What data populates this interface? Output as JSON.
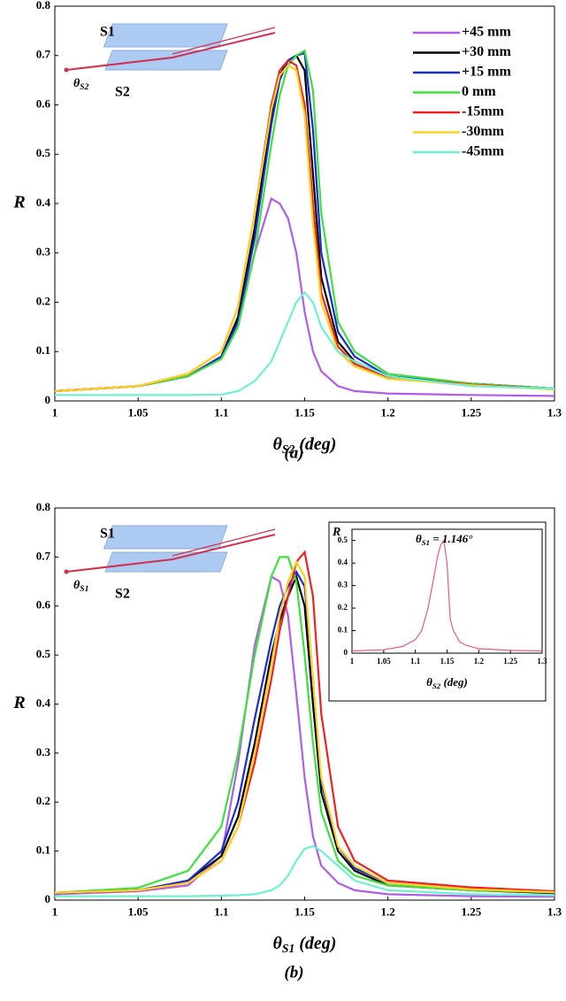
{
  "chart_data": [
    {
      "type": "line",
      "caption": "(a)",
      "y_label": "R",
      "x_label": {
        "main": "θ",
        "sub": "S2",
        "rest": " (deg)"
      },
      "diagram": {
        "upper": "S1",
        "lower": "S2",
        "angle": {
          "main": "θ",
          "sub": "S2"
        }
      },
      "xlim": [
        1,
        1.3
      ],
      "xticks": [
        1,
        1.05,
        1.1,
        1.15,
        1.2,
        1.25,
        1.3
      ],
      "ylim": [
        0,
        0.8
      ],
      "yticks": [
        0,
        0.1,
        0.2,
        0.3,
        0.4,
        0.5,
        0.6,
        0.7,
        0.8
      ],
      "legend": "top-right",
      "x": [
        1.0,
        1.05,
        1.08,
        1.1,
        1.11,
        1.12,
        1.13,
        1.135,
        1.14,
        1.145,
        1.15,
        1.155,
        1.16,
        1.17,
        1.18,
        1.2,
        1.25,
        1.3
      ],
      "series": [
        {
          "name": "+45 mm",
          "color": "#b25de8",
          "values": [
            0.02,
            0.03,
            0.05,
            0.09,
            0.16,
            0.3,
            0.41,
            0.4,
            0.37,
            0.3,
            0.18,
            0.1,
            0.06,
            0.03,
            0.02,
            0.015,
            0.012,
            0.01
          ]
        },
        {
          "name": "+30 mm",
          "color": "#000000",
          "values": [
            0.02,
            0.03,
            0.05,
            0.09,
            0.17,
            0.35,
            0.58,
            0.66,
            0.69,
            0.7,
            0.67,
            0.46,
            0.25,
            0.12,
            0.08,
            0.05,
            0.035,
            0.025
          ]
        },
        {
          "name": "+15 mm",
          "color": "#1a2ccc",
          "values": [
            0.02,
            0.03,
            0.05,
            0.09,
            0.16,
            0.33,
            0.56,
            0.65,
            0.69,
            0.7,
            0.705,
            0.55,
            0.3,
            0.14,
            0.09,
            0.05,
            0.035,
            0.025
          ]
        },
        {
          "name": "0 mm",
          "color": "#3ee03e",
          "values": [
            0.02,
            0.03,
            0.05,
            0.085,
            0.15,
            0.3,
            0.52,
            0.62,
            0.68,
            0.7,
            0.71,
            0.63,
            0.38,
            0.16,
            0.1,
            0.055,
            0.035,
            0.025
          ]
        },
        {
          "name": "-15mm",
          "color": "#ee2222",
          "values": [
            0.02,
            0.03,
            0.055,
            0.1,
            0.19,
            0.38,
            0.6,
            0.67,
            0.69,
            0.68,
            0.6,
            0.4,
            0.22,
            0.11,
            0.075,
            0.048,
            0.033,
            0.024
          ]
        },
        {
          "name": "-30mm",
          "color": "#ffd21f",
          "values": [
            0.02,
            0.03,
            0.055,
            0.1,
            0.19,
            0.38,
            0.59,
            0.66,
            0.68,
            0.67,
            0.58,
            0.36,
            0.2,
            0.1,
            0.07,
            0.045,
            0.032,
            0.023
          ]
        },
        {
          "name": "-45mm",
          "color": "#6ff0d0",
          "values": [
            0.012,
            0.012,
            0.012,
            0.013,
            0.02,
            0.04,
            0.08,
            0.12,
            0.16,
            0.2,
            0.22,
            0.2,
            0.15,
            0.1,
            0.08,
            0.05,
            0.03,
            0.025
          ]
        }
      ]
    },
    {
      "type": "line",
      "caption": "(b)",
      "y_label": "R",
      "x_label": {
        "main": "θ",
        "sub": "S1",
        "rest": " (deg)"
      },
      "diagram": {
        "upper": "S1",
        "lower": "S2",
        "angle": {
          "main": "θ",
          "sub": "S1"
        }
      },
      "xlim": [
        1,
        1.3
      ],
      "xticks": [
        1,
        1.05,
        1.1,
        1.15,
        1.2,
        1.25,
        1.3
      ],
      "ylim": [
        0,
        0.8
      ],
      "yticks": [
        0,
        0.1,
        0.2,
        0.3,
        0.4,
        0.5,
        0.6,
        0.7,
        0.8
      ],
      "x": [
        1.0,
        1.05,
        1.08,
        1.1,
        1.11,
        1.12,
        1.13,
        1.135,
        1.14,
        1.145,
        1.15,
        1.155,
        1.16,
        1.17,
        1.18,
        1.2,
        1.25,
        1.3
      ],
      "series": [
        {
          "color": "#b25de8",
          "values": [
            0.012,
            0.018,
            0.03,
            0.09,
            0.28,
            0.52,
            0.66,
            0.65,
            0.58,
            0.42,
            0.25,
            0.13,
            0.07,
            0.035,
            0.02,
            0.012,
            0.008,
            0.007
          ]
        },
        {
          "color": "#000000",
          "values": [
            0.015,
            0.02,
            0.04,
            0.09,
            0.17,
            0.32,
            0.5,
            0.57,
            0.62,
            0.66,
            0.6,
            0.4,
            0.22,
            0.1,
            0.06,
            0.03,
            0.02,
            0.014
          ]
        },
        {
          "color": "#1a2ccc",
          "values": [
            0.015,
            0.02,
            0.04,
            0.1,
            0.2,
            0.37,
            0.53,
            0.6,
            0.64,
            0.67,
            0.64,
            0.45,
            0.24,
            0.11,
            0.065,
            0.035,
            0.022,
            0.015
          ]
        },
        {
          "color": "#3ee03e",
          "values": [
            0.015,
            0.025,
            0.06,
            0.15,
            0.3,
            0.5,
            0.66,
            0.7,
            0.7,
            0.65,
            0.5,
            0.32,
            0.18,
            0.08,
            0.05,
            0.03,
            0.02,
            0.016
          ]
        },
        {
          "color": "#ee2222",
          "values": [
            0.015,
            0.02,
            0.035,
            0.08,
            0.15,
            0.28,
            0.45,
            0.55,
            0.62,
            0.69,
            0.71,
            0.62,
            0.38,
            0.15,
            0.08,
            0.04,
            0.026,
            0.018
          ]
        },
        {
          "color": "#ffd21f",
          "values": [
            0.015,
            0.02,
            0.035,
            0.08,
            0.15,
            0.3,
            0.48,
            0.58,
            0.65,
            0.69,
            0.66,
            0.45,
            0.25,
            0.11,
            0.07,
            0.035,
            0.022,
            0.016
          ]
        },
        {
          "color": "#6ff0d0",
          "values": [
            0.008,
            0.008,
            0.008,
            0.009,
            0.01,
            0.012,
            0.02,
            0.03,
            0.05,
            0.08,
            0.105,
            0.11,
            0.1,
            0.07,
            0.04,
            0.02,
            0.012,
            0.01
          ]
        }
      ]
    },
    {
      "type": "line",
      "y_label": "R",
      "x_label": {
        "main": "θ",
        "sub": "S2",
        "rest": " (deg)"
      },
      "annotation": {
        "main": "θ",
        "sub": "S1",
        "rest": " = 1.146°"
      },
      "xlim": [
        1,
        1.3
      ],
      "xticks": [
        1,
        1.05,
        1.1,
        1.15,
        1.2,
        1.25,
        1.3
      ],
      "ylim": [
        0,
        0.55
      ],
      "yticks": [
        0,
        0.1,
        0.2,
        0.3,
        0.4,
        0.5
      ],
      "x": [
        1.0,
        1.05,
        1.08,
        1.1,
        1.11,
        1.12,
        1.13,
        1.135,
        1.14,
        1.145,
        1.15,
        1.155,
        1.16,
        1.17,
        1.18,
        1.2,
        1.25,
        1.3
      ],
      "series": [
        {
          "color": "#e05a8a",
          "values": [
            0.01,
            0.015,
            0.03,
            0.06,
            0.1,
            0.2,
            0.35,
            0.43,
            0.48,
            0.5,
            0.4,
            0.15,
            0.1,
            0.05,
            0.035,
            0.02,
            0.012,
            0.01
          ]
        }
      ]
    }
  ]
}
